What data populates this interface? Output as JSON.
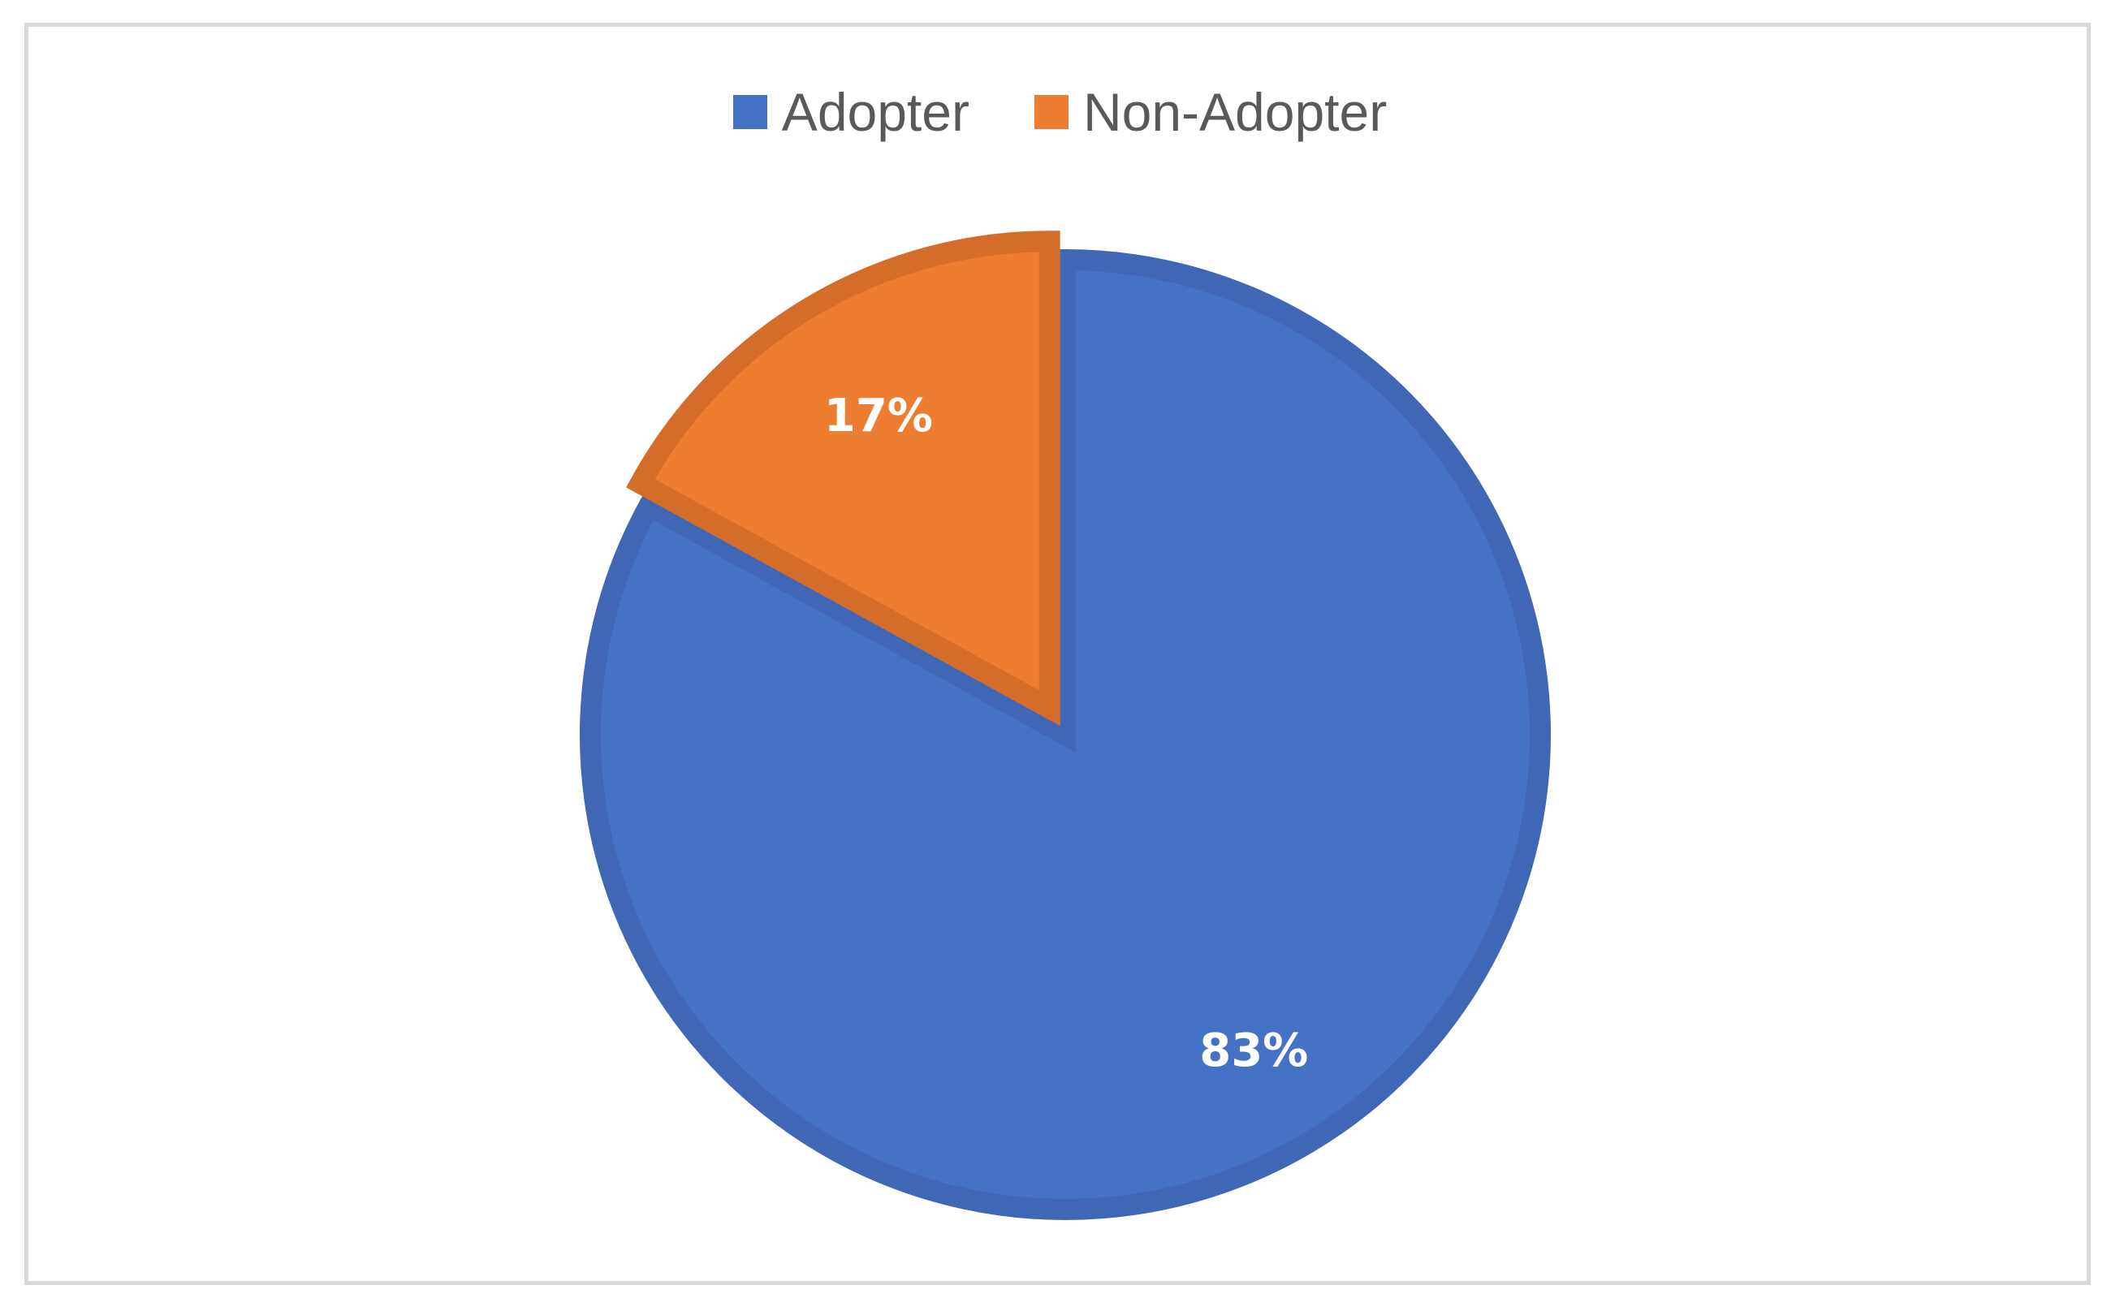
{
  "chart_data": {
    "type": "pie",
    "categories": [
      "Adopter",
      "Non-Adopter"
    ],
    "values": [
      83,
      17
    ],
    "labels": [
      "83%",
      "17%"
    ],
    "colors": [
      "#4472C4",
      "#ED7D31"
    ],
    "border_colors": [
      "#3F67B6",
      "#D46C2A"
    ],
    "legend_position": "top",
    "start_angle_deg": 0,
    "direction": "clockwise",
    "exploded": "Non-Adopter"
  }
}
